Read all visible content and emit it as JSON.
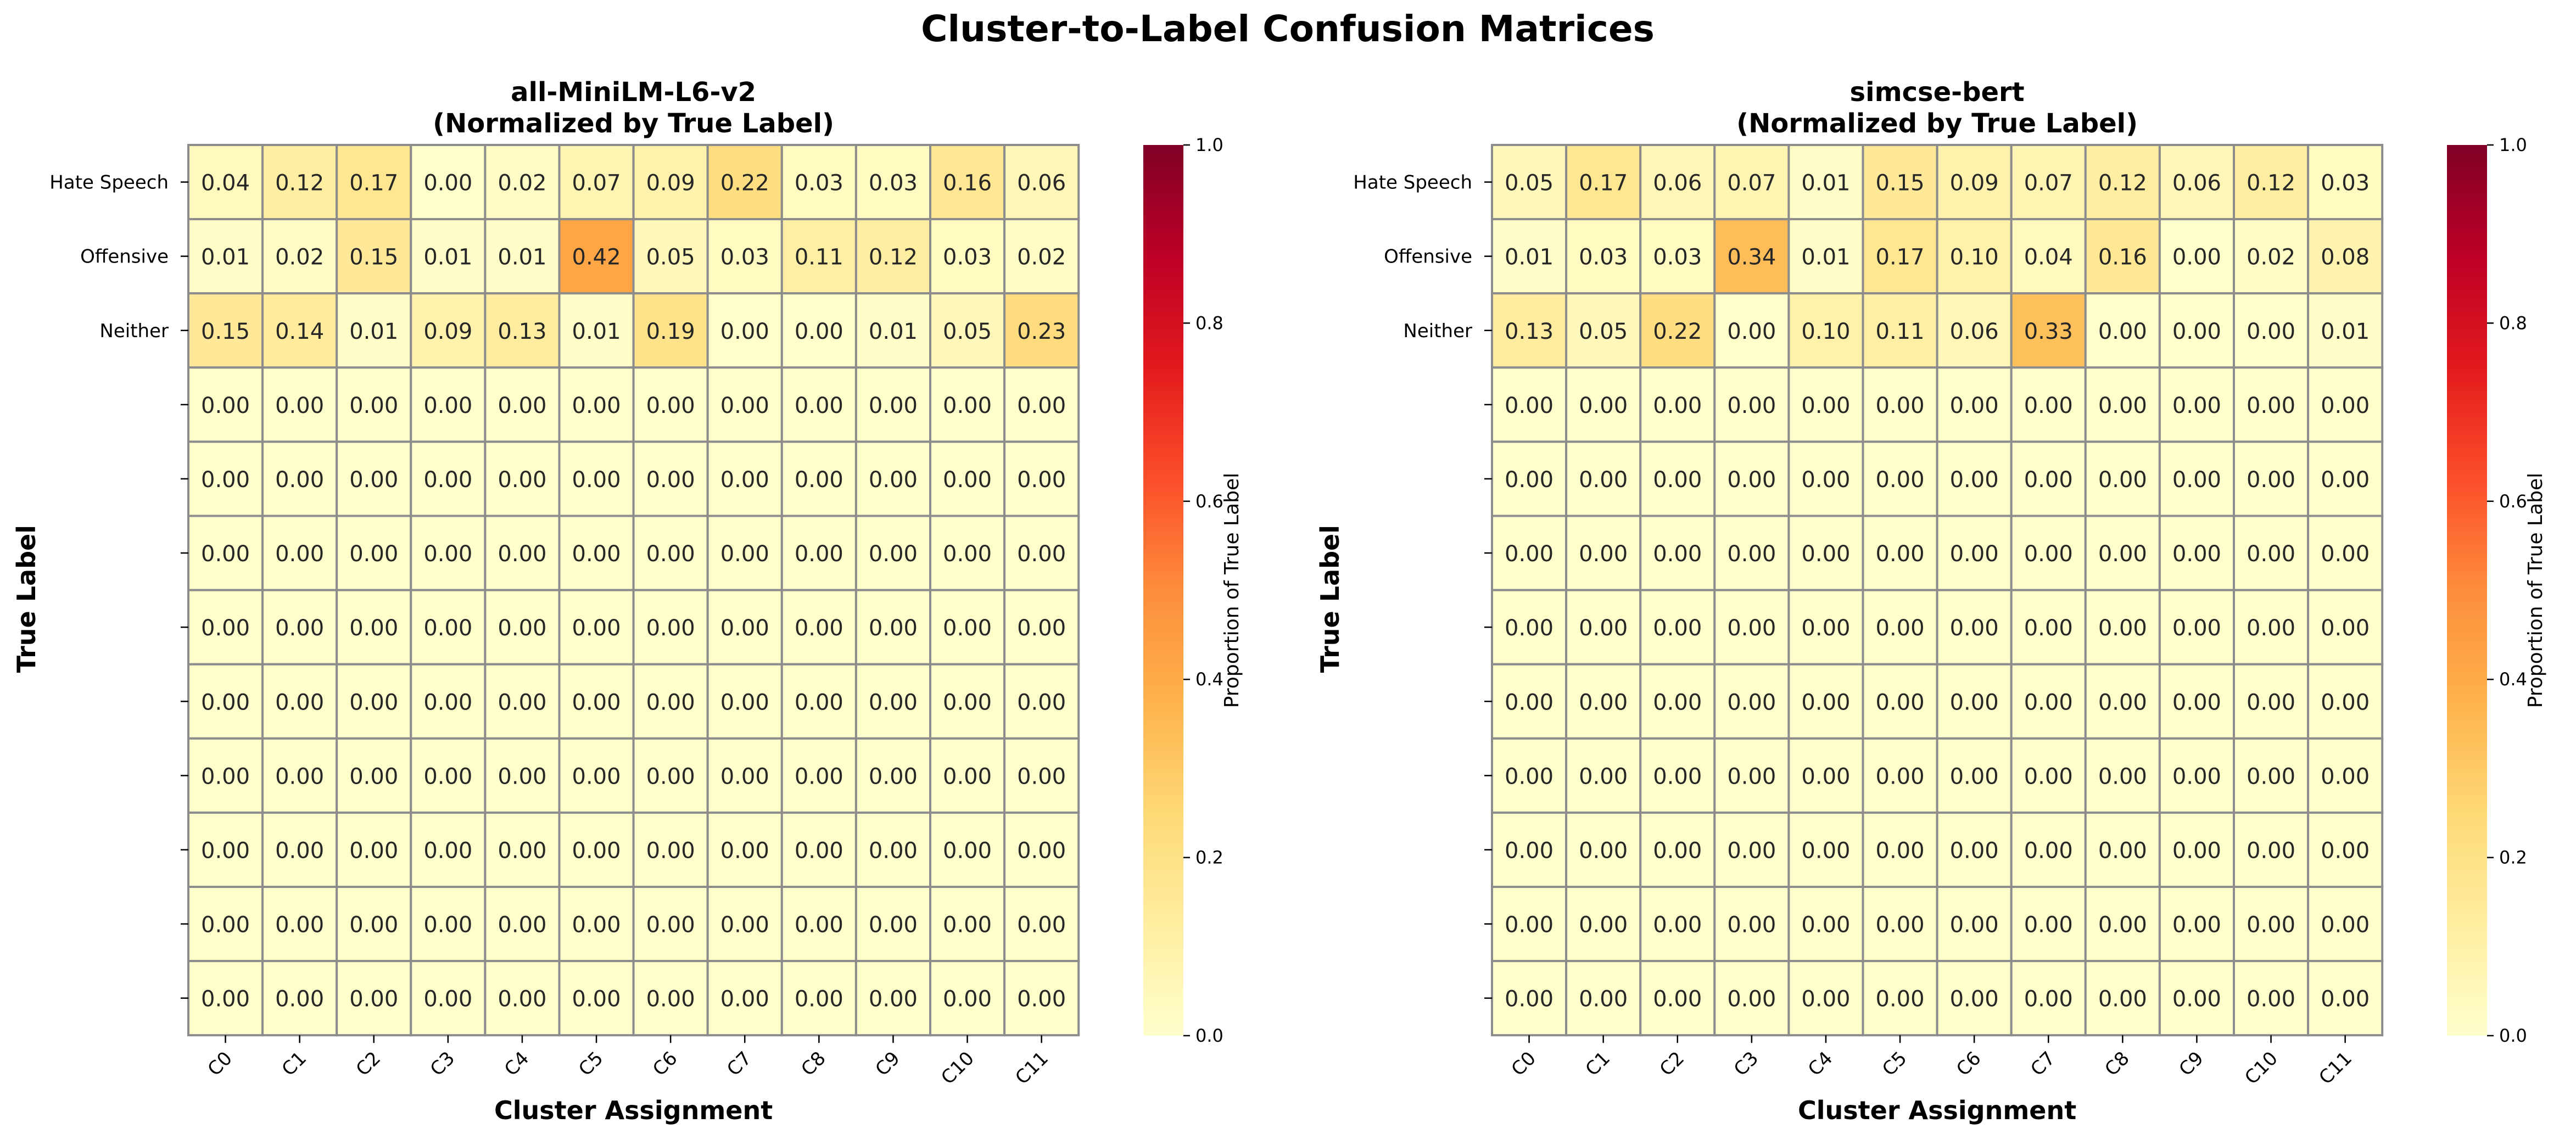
{
  "figure_title": "Cluster-to-Label Confusion Matrices",
  "chart_data": [
    {
      "type": "heatmap",
      "title": "all-MiniLM-L6-v2\n(Normalized by True Label)",
      "xlabel": "Cluster Assignment",
      "ylabel": "True Label",
      "x_categories": [
        "C0",
        "C1",
        "C2",
        "C3",
        "C4",
        "C5",
        "C6",
        "C7",
        "C8",
        "C9",
        "C10",
        "C11"
      ],
      "y_categories": [
        "Hate Speech",
        "Offensive",
        "Neither",
        "",
        "",
        "",
        "",
        "",
        "",
        "",
        "",
        ""
      ],
      "values": [
        [
          0.04,
          0.12,
          0.17,
          0.0,
          0.02,
          0.07,
          0.09,
          0.22,
          0.03,
          0.03,
          0.16,
          0.06
        ],
        [
          0.01,
          0.02,
          0.15,
          0.01,
          0.01,
          0.42,
          0.05,
          0.03,
          0.11,
          0.12,
          0.03,
          0.02
        ],
        [
          0.15,
          0.14,
          0.01,
          0.09,
          0.13,
          0.01,
          0.19,
          0.0,
          0.0,
          0.01,
          0.05,
          0.23
        ],
        [
          0,
          0,
          0,
          0,
          0,
          0,
          0,
          0,
          0,
          0,
          0,
          0
        ],
        [
          0,
          0,
          0,
          0,
          0,
          0,
          0,
          0,
          0,
          0,
          0,
          0
        ],
        [
          0,
          0,
          0,
          0,
          0,
          0,
          0,
          0,
          0,
          0,
          0,
          0
        ],
        [
          0,
          0,
          0,
          0,
          0,
          0,
          0,
          0,
          0,
          0,
          0,
          0
        ],
        [
          0,
          0,
          0,
          0,
          0,
          0,
          0,
          0,
          0,
          0,
          0,
          0
        ],
        [
          0,
          0,
          0,
          0,
          0,
          0,
          0,
          0,
          0,
          0,
          0,
          0
        ],
        [
          0,
          0,
          0,
          0,
          0,
          0,
          0,
          0,
          0,
          0,
          0,
          0
        ],
        [
          0,
          0,
          0,
          0,
          0,
          0,
          0,
          0,
          0,
          0,
          0,
          0
        ],
        [
          0,
          0,
          0,
          0,
          0,
          0,
          0,
          0,
          0,
          0,
          0,
          0
        ]
      ],
      "value_format": "0.00",
      "colorbar": {
        "label": "Proportion of True Label",
        "range": [
          0,
          1
        ],
        "ticks": [
          "0.0",
          "0.2",
          "0.4",
          "0.6",
          "0.8",
          "1.0"
        ],
        "colormap": "YlOrRd"
      },
      "grid": "gray cell borders"
    },
    {
      "type": "heatmap",
      "title": "simcse-bert\n(Normalized by True Label)",
      "xlabel": "Cluster Assignment",
      "ylabel": "True Label",
      "x_categories": [
        "C0",
        "C1",
        "C2",
        "C3",
        "C4",
        "C5",
        "C6",
        "C7",
        "C8",
        "C9",
        "C10",
        "C11"
      ],
      "y_categories": [
        "Hate Speech",
        "Offensive",
        "Neither",
        "",
        "",
        "",
        "",
        "",
        "",
        "",
        "",
        ""
      ],
      "values": [
        [
          0.05,
          0.17,
          0.06,
          0.07,
          0.01,
          0.15,
          0.09,
          0.07,
          0.12,
          0.06,
          0.12,
          0.03
        ],
        [
          0.01,
          0.03,
          0.03,
          0.34,
          0.01,
          0.17,
          0.1,
          0.04,
          0.16,
          0.0,
          0.02,
          0.08
        ],
        [
          0.13,
          0.05,
          0.22,
          0.0,
          0.1,
          0.11,
          0.06,
          0.33,
          0.0,
          0.0,
          0.0,
          0.01
        ],
        [
          0,
          0,
          0,
          0,
          0,
          0,
          0,
          0,
          0,
          0,
          0,
          0
        ],
        [
          0,
          0,
          0,
          0,
          0,
          0,
          0,
          0,
          0,
          0,
          0,
          0
        ],
        [
          0,
          0,
          0,
          0,
          0,
          0,
          0,
          0,
          0,
          0,
          0,
          0
        ],
        [
          0,
          0,
          0,
          0,
          0,
          0,
          0,
          0,
          0,
          0,
          0,
          0
        ],
        [
          0,
          0,
          0,
          0,
          0,
          0,
          0,
          0,
          0,
          0,
          0,
          0
        ],
        [
          0,
          0,
          0,
          0,
          0,
          0,
          0,
          0,
          0,
          0,
          0,
          0
        ],
        [
          0,
          0,
          0,
          0,
          0,
          0,
          0,
          0,
          0,
          0,
          0,
          0
        ],
        [
          0,
          0,
          0,
          0,
          0,
          0,
          0,
          0,
          0,
          0,
          0,
          0
        ],
        [
          0,
          0,
          0,
          0,
          0,
          0,
          0,
          0,
          0,
          0,
          0,
          0
        ]
      ],
      "value_format": "0.00",
      "colorbar": {
        "label": "Proportion of True Label",
        "range": [
          0,
          1
        ],
        "ticks": [
          "0.0",
          "0.2",
          "0.4",
          "0.6",
          "0.8",
          "1.0"
        ],
        "colormap": "YlOrRd"
      },
      "grid": "gray cell borders"
    }
  ]
}
